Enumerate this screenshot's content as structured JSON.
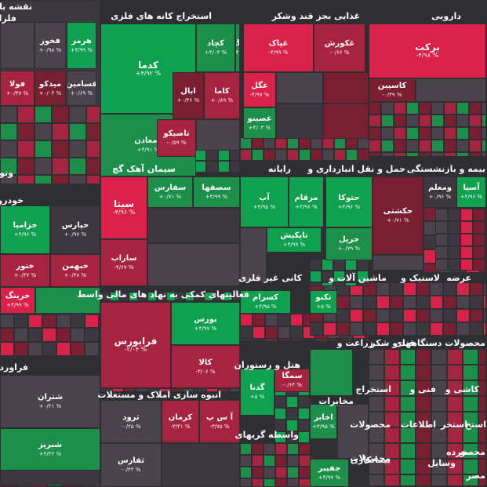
{
  "title": "نقشه بازار",
  "colors": {
    "background": "#2f2f33",
    "green_strong": "#0fa150",
    "green": "#1c8f4a",
    "red_strong": "#d9214a",
    "red": "#a8233f",
    "red_dark": "#7a1e32",
    "neutral": "#4a434b",
    "neutral_dark": "#3d383f"
  },
  "sectors": [
    {
      "label": "فلزات"
    },
    {
      "label": "استخراج کانه های فلزی"
    },
    {
      "label": "غذایی بجز قند وشکر"
    },
    {
      "label": "دارویی"
    },
    {
      "label": "خودرو"
    },
    {
      "label": "سیمان آهک گچ"
    },
    {
      "label": "رایانه"
    },
    {
      "label": "حمل و نقل انبارداری و"
    },
    {
      "label": "بیمه و بازنشستگی"
    },
    {
      "label": "فعالیتهای کمکی به نهاد های مالی واسط"
    },
    {
      "label": "کانی غیر فلزی"
    },
    {
      "label": "ماشین آلات و"
    },
    {
      "label": "لاستیک و"
    },
    {
      "label": "عرضه"
    },
    {
      "label": "فراورده"
    },
    {
      "label": "انبوه سازی املاک و مستغلات"
    },
    {
      "label": "هتل و رستوران"
    },
    {
      "label": "زراعت و"
    },
    {
      "label": "قند و شکر"
    },
    {
      "label": "محصولات دستگاههای"
    },
    {
      "label": "واسطه گریهای"
    },
    {
      "label": "ونوتو"
    }
  ],
  "tiles": [
    {
      "name": "هرمز",
      "pct": "+۴/۹۹ %"
    },
    {
      "name": "فخوز",
      "pct": "+۰/۹۸ %"
    },
    {
      "name": "فسامین",
      "pct": "+۰/۶۹ %"
    },
    {
      "name": "میدکو",
      "pct": "+۰/۰۴ %"
    },
    {
      "name": "فولا",
      "pct": "+۰/۴۷ %"
    },
    {
      "name": "کدما",
      "pct": "+۴/۹۲ %"
    },
    {
      "name": "کچاد",
      "pct": "+۴/۰۳ %"
    },
    {
      "name": "کگل",
      "pct": "+۴/۴۴ %"
    },
    {
      "name": "ومعادن",
      "pct": "+۴/۹۱ %"
    },
    {
      "name": "کاما",
      "pct": "+۰/۸۹ %"
    },
    {
      "name": "ابال",
      "pct": "+۰/۴۶ %"
    },
    {
      "name": "تاصیکو",
      "pct": "-۰/۵۹ %"
    },
    {
      "name": "غپاک",
      "pct": "-۴/۹۹ %"
    },
    {
      "name": "غکورش",
      "pct": "-۰/۶۶ %"
    },
    {
      "name": "غگل",
      "pct": "-۴/۹۷ %"
    },
    {
      "name": "غصینو",
      "pct": "+۴/۰۳ %"
    },
    {
      "name": "برکت",
      "pct": "-۴/۹۸ %"
    },
    {
      "name": "کاسپین",
      "pct": "-۰/۴۹ %"
    },
    {
      "name": "خزامیا",
      "pct": "+۴/۹۶ %"
    },
    {
      "name": "خپارس",
      "pct": "+۰/۹۷ %"
    },
    {
      "name": "ختور",
      "pct": "+۰/۳۷ %"
    },
    {
      "name": "خبهمن",
      "pct": "+۰/۴۸ %"
    },
    {
      "name": "خرینگ",
      "pct": "+۴/۹۹ %"
    },
    {
      "name": "سیتا",
      "pct": "-۴/۹۶ %"
    },
    {
      "name": "سفارس",
      "pct": "+۰/۷۱ %"
    },
    {
      "name": "سصفها",
      "pct": "+۴/۹۹ %"
    },
    {
      "name": "ساراب",
      "pct": "-۴/۶۷ %"
    },
    {
      "name": "آپ",
      "pct": "+۴/۹۵ %"
    },
    {
      "name": "مرقام",
      "pct": "+۴/۹۶ %"
    },
    {
      "name": "تاپکیش",
      "pct": "+۴/۹۹ %"
    },
    {
      "name": "حتوکا",
      "pct": "+۴/۹۶ %"
    },
    {
      "name": "حکشتی",
      "pct": "+۰/۷۱ %"
    },
    {
      "name": "حریل",
      "pct": "+۰/۷۹ %"
    },
    {
      "name": "آسیا",
      "pct": "+۴/۹۶ %"
    },
    {
      "name": "ومعلم",
      "pct": "+۰/۹۶ %"
    },
    {
      "name": "فرابورس",
      "pct": "-۲/۰۴ %"
    },
    {
      "name": "بورس",
      "pct": "+۴/۹۷ %"
    },
    {
      "name": "کالا",
      "pct": "-۳/۰۶ %"
    },
    {
      "name": "کسرام",
      "pct": "+۴/۹۵ %"
    },
    {
      "name": "تکنو",
      "pct": "+۵ %"
    },
    {
      "name": "شتران",
      "pct": "+۰/۲۱ %"
    },
    {
      "name": "شبریز",
      "pct": "+۴/۴۲ %"
    },
    {
      "name": "ثرود",
      "pct": "-۰/۲۵ %"
    },
    {
      "name": "کرمان",
      "pct": "-۳/۴۱ %"
    },
    {
      "name": "آ س پ",
      "pct": "-۳/۷۵ %"
    },
    {
      "name": "ثفارس",
      "pct": "-۰/۴۲ %"
    },
    {
      "name": "گدنا",
      "pct": "+۵ %"
    },
    {
      "name": "سمگا",
      "pct": "-۰/۶۴ %"
    },
    {
      "name": "اخابر",
      "pct": "+۴/۹۵ %"
    },
    {
      "name": "جفیبر",
      "pct": "+۴/۹۷ %"
    }
  ],
  "small_labels": [
    "مخابرات",
    "استخراج",
    "فنی و",
    "کاشی و",
    "محصولات",
    "اطلاعات",
    "استخر",
    "استخ",
    "خرده",
    "محصولات",
    "وسایل",
    "بیمانکاری",
    "محصو",
    "مصر"
  ]
}
